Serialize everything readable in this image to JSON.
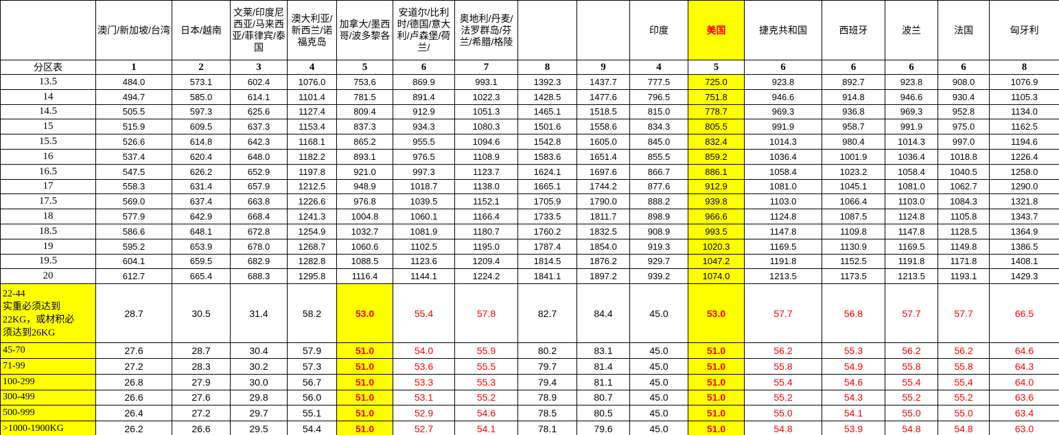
{
  "table": {
    "corner_label": "",
    "zone_row_label": "分区表",
    "highlight_yellow": "#ffff00",
    "highlight_red": "#ff0000",
    "columns": [
      {
        "label": "澳门/新加坡/台湾",
        "zone": "1",
        "highlight": false
      },
      {
        "label": "日本/越南",
        "zone": "2",
        "highlight": false
      },
      {
        "label": "文莱/印度尼西亚/马来西亚/菲律宾/泰国",
        "zone": "3",
        "highlight": false
      },
      {
        "label": "澳大利亚/新西兰/诺福克岛",
        "zone": "4",
        "highlight": false
      },
      {
        "label": "加拿大/墨西哥/波多黎各",
        "zone": "5",
        "highlight": false
      },
      {
        "label": "安道尔/比利时/德国/意大利/卢森堡/荷兰/",
        "zone": "6",
        "highlight": false
      },
      {
        "label": "奥地利/丹麦/法罗群岛/芬兰/希腊/格陵",
        "zone": "7",
        "highlight": false
      },
      {
        "label": "",
        "zone": "8",
        "highlight": false
      },
      {
        "label": "",
        "zone": "9",
        "highlight": false
      },
      {
        "label": "印度",
        "zone": "4",
        "highlight": false
      },
      {
        "label": "美国",
        "zone": "5",
        "highlight": true
      },
      {
        "label": "捷克共和国",
        "zone": "6",
        "highlight": false
      },
      {
        "label": "西班牙",
        "zone": "6",
        "highlight": false
      },
      {
        "label": "波兰",
        "zone": "6",
        "highlight": false
      },
      {
        "label": "法国",
        "zone": "6",
        "highlight": false
      },
      {
        "label": "匈牙利",
        "zone": "8",
        "highlight": false
      }
    ],
    "weight_rows": [
      {
        "label": "13.5",
        "values": [
          "484.0",
          "573.1",
          "602.4",
          "1076.0",
          "753.6",
          "869.9",
          "993.1",
          "1392.3",
          "1437.7",
          "777.5",
          "725.0",
          "923.8",
          "892.7",
          "923.8",
          "908.0",
          "1076.9"
        ]
      },
      {
        "label": "14",
        "values": [
          "494.7",
          "585.0",
          "614.1",
          "1101.4",
          "781.5",
          "891.4",
          "1022.3",
          "1428.5",
          "1477.6",
          "796.5",
          "751.8",
          "946.6",
          "914.8",
          "946.6",
          "930.4",
          "1105.3"
        ]
      },
      {
        "label": "14.5",
        "values": [
          "505.5",
          "597.3",
          "625.6",
          "1127.4",
          "809.4",
          "912.9",
          "1051.3",
          "1465.1",
          "1518.5",
          "815.0",
          "778.7",
          "969.3",
          "936.8",
          "969.3",
          "952.8",
          "1134.0"
        ]
      },
      {
        "label": "15",
        "values": [
          "515.9",
          "609.5",
          "637.3",
          "1153.4",
          "837.3",
          "934.3",
          "1080.3",
          "1501.6",
          "1558.6",
          "834.3",
          "805.5",
          "991.9",
          "958.7",
          "991.9",
          "975.0",
          "1162.5"
        ]
      },
      {
        "label": "15.5",
        "values": [
          "526.6",
          "614.8",
          "642.3",
          "1168.1",
          "865.2",
          "955.5",
          "1094.6",
          "1542.8",
          "1605.0",
          "845.0",
          "832.4",
          "1014.3",
          "980.4",
          "1014.3",
          "997.0",
          "1194.6"
        ]
      },
      {
        "label": "16",
        "values": [
          "537.4",
          "620.4",
          "648.0",
          "1182.2",
          "893.1",
          "976.5",
          "1108.9",
          "1583.6",
          "1651.4",
          "855.5",
          "859.2",
          "1036.4",
          "1001.9",
          "1036.4",
          "1018.8",
          "1226.4"
        ]
      },
      {
        "label": "16.5",
        "values": [
          "547.5",
          "626.2",
          "652.9",
          "1197.8",
          "921.0",
          "997.3",
          "1123.7",
          "1624.1",
          "1697.6",
          "866.7",
          "886.1",
          "1058.4",
          "1023.2",
          "1058.4",
          "1040.5",
          "1258.0"
        ]
      },
      {
        "label": "17",
        "values": [
          "558.3",
          "631.4",
          "657.9",
          "1212.5",
          "948.9",
          "1018.7",
          "1138.0",
          "1665.1",
          "1744.2",
          "877.6",
          "912.9",
          "1081.0",
          "1045.1",
          "1081.0",
          "1062.7",
          "1290.0"
        ]
      },
      {
        "label": "17.5",
        "values": [
          "569.0",
          "637.4",
          "663.8",
          "1226.6",
          "976.8",
          "1039.5",
          "1152.1",
          "1705.9",
          "1790.0",
          "888.2",
          "939.8",
          "1103.0",
          "1066.4",
          "1103.0",
          "1084.3",
          "1321.8"
        ]
      },
      {
        "label": "18",
        "values": [
          "577.9",
          "642.9",
          "668.4",
          "1241.3",
          "1004.8",
          "1060.1",
          "1166.4",
          "1733.5",
          "1811.7",
          "898.9",
          "966.6",
          "1124.8",
          "1087.5",
          "1124.8",
          "1105.8",
          "1343.7"
        ]
      },
      {
        "label": "18.5",
        "values": [
          "586.6",
          "648.1",
          "672.8",
          "1254.9",
          "1032.7",
          "1081.9",
          "1180.7",
          "1760.2",
          "1832.5",
          "908.9",
          "993.5",
          "1147.8",
          "1109.8",
          "1147.8",
          "1128.5",
          "1364.9"
        ]
      },
      {
        "label": "19",
        "values": [
          "595.2",
          "653.9",
          "678.0",
          "1268.7",
          "1060.6",
          "1102.5",
          "1195.0",
          "1787.4",
          "1854.0",
          "919.3",
          "1020.3",
          "1169.5",
          "1130.9",
          "1169.5",
          "1149.8",
          "1386.5"
        ]
      },
      {
        "label": "19.5",
        "values": [
          "604.1",
          "659.5",
          "682.9",
          "1282.8",
          "1088.5",
          "1123.6",
          "1209.4",
          "1814.5",
          "1876.2",
          "929.7",
          "1047.2",
          "1191.8",
          "1152.5",
          "1191.8",
          "1171.8",
          "1408.1"
        ]
      },
      {
        "label": "20",
        "values": [
          "612.7",
          "665.4",
          "688.3",
          "1295.8",
          "1116.4",
          "1144.1",
          "1224.2",
          "1841.1",
          "1897.2",
          "939.2",
          "1074.0",
          "1213.5",
          "1173.5",
          "1213.5",
          "1193.1",
          "1429.3"
        ]
      }
    ],
    "special_rows": [
      {
        "label": "22-44\n实重必须达到\n22KG，或材积必\n须达到26KG",
        "values": [
          "28.7",
          "30.5",
          "31.4",
          "58.2",
          "53.0",
          "55.4",
          "57.8",
          "82.7",
          "84.4",
          "45.0",
          "53.0",
          "57.7",
          "56.8",
          "57.7",
          "57.7",
          "66.5"
        ]
      },
      {
        "label": "45-70",
        "values": [
          "27.6",
          "28.7",
          "30.4",
          "57.9",
          "51.0",
          "54.0",
          "55.9",
          "80.2",
          "83.1",
          "45.0",
          "51.0",
          "56.2",
          "55.3",
          "56.2",
          "56.2",
          "64.6"
        ]
      },
      {
        "label": "71-99",
        "values": [
          "27.2",
          "28.3",
          "30.2",
          "57.3",
          "51.0",
          "53.6",
          "55.5",
          "79.7",
          "81.4",
          "45.0",
          "51.0",
          "55.8",
          "54.9",
          "55.8",
          "55.8",
          "64.3"
        ]
      },
      {
        "label": "100-299",
        "values": [
          "26.8",
          "27.9",
          "30.0",
          "56.7",
          "51.0",
          "53.3",
          "55.3",
          "79.4",
          "81.1",
          "45.0",
          "51.0",
          "55.4",
          "54.6",
          "55.4",
          "55.4",
          "64.0"
        ]
      },
      {
        "label": "300-499",
        "values": [
          "26.6",
          "27.6",
          "29.8",
          "56.0",
          "51.0",
          "53.1",
          "55.2",
          "78.9",
          "80.7",
          "45.0",
          "51.0",
          "55.2",
          "54.3",
          "55.2",
          "55.2",
          "63.6"
        ]
      },
      {
        "label": "500-999",
        "values": [
          "26.4",
          "27.2",
          "29.7",
          "55.1",
          "51.0",
          "52.9",
          "54.6",
          "78.5",
          "80.5",
          "45.0",
          "51.0",
          "55.0",
          "54.1",
          "55.0",
          "55.0",
          "63.4"
        ]
      },
      {
        "label": ">1000-1900KG",
        "values": [
          "26.2",
          "26.6",
          "29.5",
          "54.4",
          "51.0",
          "52.7",
          "54.1",
          "78.1",
          "79.6",
          "45.0",
          "51.0",
          "54.8",
          "53.9",
          "54.8",
          "54.8",
          "63.0"
        ]
      }
    ],
    "styles": {
      "weight_yellow_cols": [
        10
      ],
      "special_yellow_bold_cols": [
        4,
        10
      ],
      "special_red_cols": [
        5,
        6,
        11,
        12,
        13,
        14,
        15
      ]
    }
  }
}
